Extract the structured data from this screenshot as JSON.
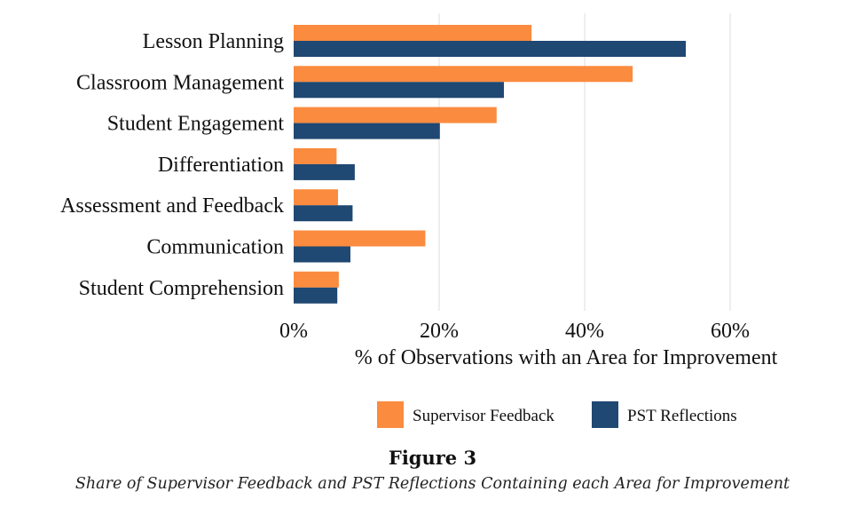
{
  "chart_data": {
    "type": "bar",
    "orientation": "horizontal",
    "categories": [
      "Lesson Planning",
      "Classroom Management",
      "Student Engagement",
      "Differentiation",
      "Assessment and Feedback",
      "Communication",
      "Student Comprehension"
    ],
    "series": [
      {
        "name": "Supervisor Feedback",
        "color": "#FB8B3F",
        "values": [
          32.7,
          46.6,
          27.9,
          5.9,
          6.1,
          18.1,
          6.2
        ]
      },
      {
        "name": "PST Reflections",
        "color": "#1F4872",
        "values": [
          53.9,
          28.9,
          20.1,
          8.4,
          8.1,
          7.8,
          6.0
        ]
      }
    ],
    "xlabel": "% of Observations with an Area for Improvement",
    "ylabel": "",
    "xlim": [
      0,
      60
    ],
    "xticks": [
      0,
      20,
      40,
      60
    ],
    "xtick_labels": [
      "0%",
      "20%",
      "40%",
      "60%"
    ],
    "grid": "vertical",
    "legend_position": "bottom"
  },
  "figure": {
    "number": "Figure 3",
    "caption": "Share of Supervisor Feedback and PST Reflections Containing each Area for Improvement"
  }
}
